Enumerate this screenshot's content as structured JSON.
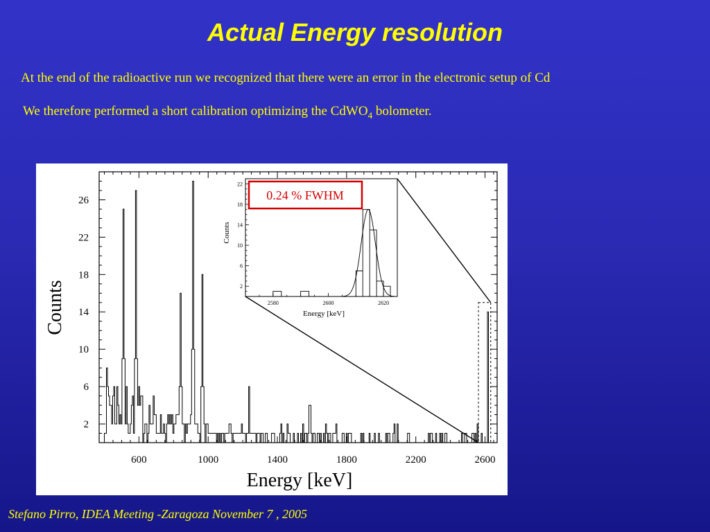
{
  "slide": {
    "title": "Actual Energy resolution",
    "line1": "At the end of the radioactive run we recognized that there were an error in the electronic setup of Cd",
    "line2_main": "We therefore performed a short calibration optimizing the CdWO",
    "line2_sub": "4",
    "line2_end": " bolometer.",
    "footer": "Stefano Pirro, IDEA Meeting -Zaragoza  November  7 , 2005",
    "colors": {
      "title": "#ffff00",
      "text": "#ffff00",
      "annotation_border": "#d40000",
      "annotation_text": "#d40000"
    }
  },
  "chart_data": [
    {
      "type": "line",
      "subtype": "histogram",
      "xlabel": "Energy   [keV]",
      "ylabel": "Counts",
      "xlim": [
        370,
        2670
      ],
      "ylim": [
        0,
        29
      ],
      "xticks": [
        600,
        1000,
        1400,
        1800,
        2200,
        2600
      ],
      "yticks": [
        2,
        6,
        10,
        14,
        18,
        22,
        26
      ],
      "grid": false,
      "peaks": [
        {
          "x": 510,
          "y": 25
        },
        {
          "x": 583,
          "y": 27
        },
        {
          "x": 911,
          "y": 28
        },
        {
          "x": 969,
          "y": 18
        },
        {
          "x": 840,
          "y": 16
        },
        {
          "x": 1238,
          "y": 6
        },
        {
          "x": 1588,
          "y": 4
        },
        {
          "x": 2615,
          "y": 14
        }
      ],
      "zoom_box": {
        "xlim": [
          2570,
          2625
        ],
        "ylim": [
          0,
          15
        ]
      }
    },
    {
      "type": "line",
      "subtype": "histogram-with-fit",
      "xlabel": "Energy  [keV]",
      "ylabel": "Counts",
      "xlim": [
        2570,
        2625
      ],
      "ylim": [
        0,
        23
      ],
      "xticks": [
        2580,
        2600,
        2620
      ],
      "yticks": [
        2,
        6,
        10,
        14,
        18,
        22
      ],
      "bins": [
        [
          2580,
          1
        ],
        [
          2585,
          0
        ],
        [
          2590,
          1
        ],
        [
          2595,
          0
        ],
        [
          2600,
          0
        ],
        [
          2605,
          0
        ],
        [
          2610,
          5
        ],
        [
          2612.5,
          17
        ],
        [
          2615,
          13
        ],
        [
          2617.5,
          3
        ],
        [
          2620,
          2
        ]
      ],
      "fit": {
        "kind": "gaussian",
        "mean": 2614.5,
        "sigma": 2.6,
        "amplitude": 17
      },
      "annotation": "0.24 % FWHM"
    }
  ]
}
